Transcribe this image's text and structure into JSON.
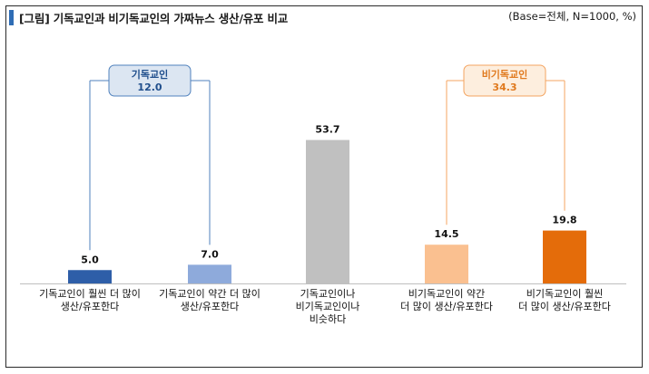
{
  "header": {
    "title": "[그림] 기독교인과 비기독교인의 가짜뉴스 생산/유포 비교",
    "base_note": "(Base=전체, N=1000, %)"
  },
  "summary_boxes": [
    {
      "label": "기독교인",
      "value": "12.0",
      "border": "#4f81bd",
      "fill": "#dce6f2",
      "text": "#1f4e8c"
    },
    {
      "label": "비기독교인",
      "value": "34.3",
      "border": "#f4a460",
      "fill": "#fdeede",
      "text": "#e07a1f"
    }
  ],
  "colors": {
    "bar1": "#2e5ea8",
    "bar2": "#8eaadb",
    "bar3": "#c0c0c0",
    "bar4": "#fac090",
    "bar5": "#e46c0a",
    "baseline": "#bfbfbf"
  },
  "chart_data": {
    "type": "bar",
    "categories": [
      "기독교인이 훨씬 더 많이\n생산/유포한다",
      "기독교인이 약간 더 많이\n생산/유포한다",
      "기독교인이나\n비기독교인이나\n비슷하다",
      "비기독교인이 약간\n더 많이 생산/유포한다",
      "비기독교인이 훨씬\n더 많이 생산/유포한다"
    ],
    "values": [
      5.0,
      7.0,
      53.7,
      14.5,
      19.8
    ],
    "value_labels": [
      "5.0",
      "7.0",
      "53.7",
      "14.5",
      "19.8"
    ],
    "ylim": [
      0,
      60
    ],
    "grid": false,
    "groups": [
      {
        "label": "기독교인",
        "value": 12.0,
        "members": [
          0,
          1
        ]
      },
      {
        "label": "비기독교인",
        "value": 34.3,
        "members": [
          3,
          4
        ]
      }
    ]
  }
}
